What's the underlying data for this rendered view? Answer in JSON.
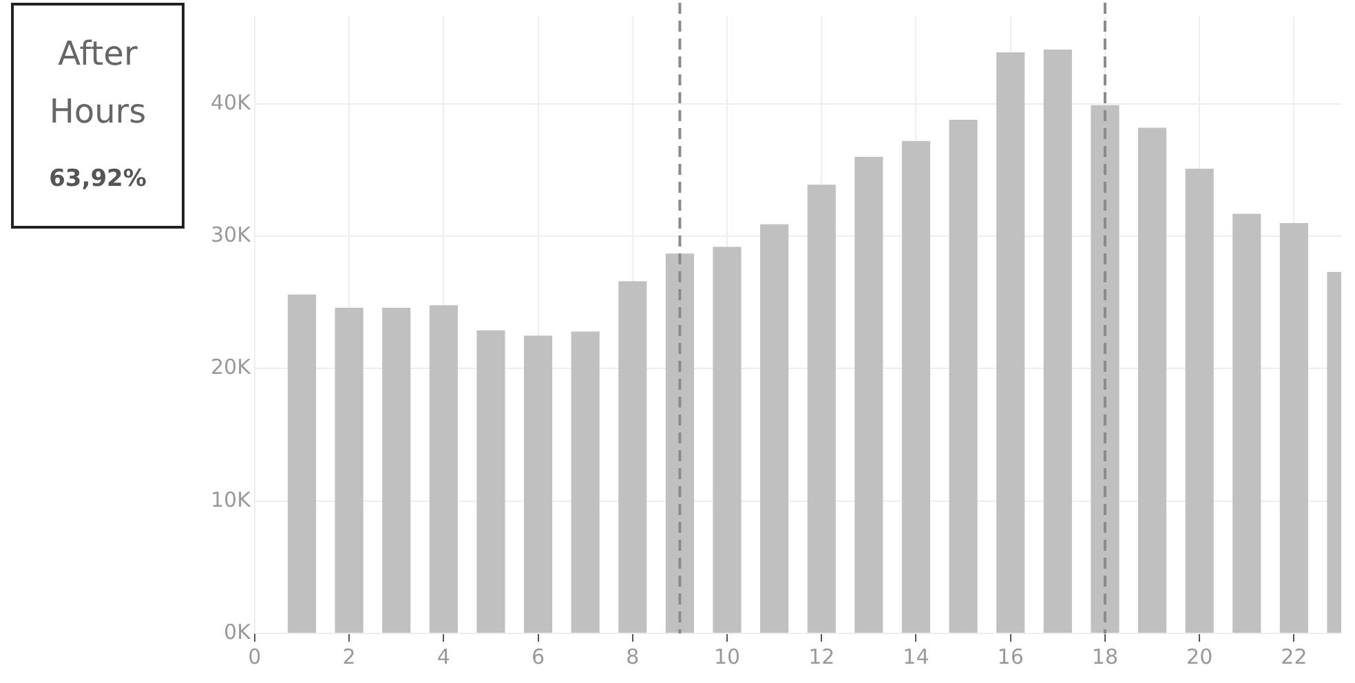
{
  "chart_data": {
    "type": "bar",
    "x": [
      1,
      2,
      3,
      4,
      5,
      6,
      7,
      8,
      9,
      10,
      11,
      12,
      13,
      14,
      15,
      16,
      17,
      18,
      19,
      20,
      21,
      22,
      23
    ],
    "values": [
      25600,
      24600,
      24600,
      24800,
      22900,
      22500,
      22800,
      26600,
      28700,
      29200,
      30900,
      33900,
      36000,
      37200,
      38800,
      43900,
      44100,
      39900,
      38200,
      35100,
      31700,
      31000,
      27300
    ],
    "color": "#c0c0c0",
    "xlim": [
      0,
      23
    ],
    "xticks": [
      0,
      2,
      4,
      6,
      8,
      10,
      12,
      14,
      16,
      18,
      20,
      22
    ],
    "ylim": [
      0,
      46600
    ],
    "yticks": [
      {
        "value": 0,
        "label": "0K"
      },
      {
        "value": 10000,
        "label": "10K"
      },
      {
        "value": 20000,
        "label": "20K"
      },
      {
        "value": 30000,
        "label": "30K"
      },
      {
        "value": 40000,
        "label": "40K"
      }
    ],
    "grid": true,
    "ref_lines": [
      {
        "axis": "x",
        "value": 9,
        "color": "#8a8a8a",
        "line_style": "dashed"
      },
      {
        "axis": "x",
        "value": 18,
        "color": "#8a8a8a",
        "line_style": "dashed"
      }
    ],
    "annotations": [
      "After Hours",
      "63,92%"
    ]
  }
}
